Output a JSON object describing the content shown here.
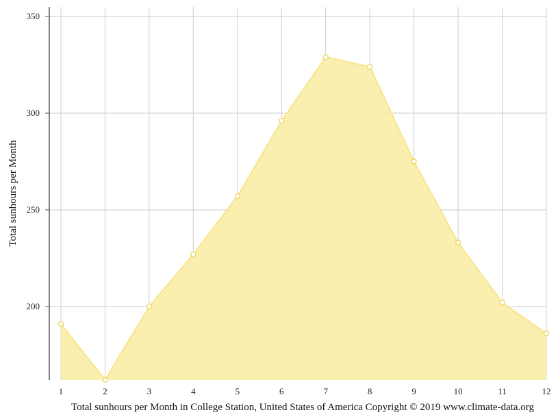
{
  "chart_data": {
    "type": "area",
    "x": [
      1,
      2,
      3,
      4,
      5,
      6,
      7,
      8,
      9,
      10,
      11,
      12
    ],
    "series": [
      {
        "values": [
          191,
          162,
          200,
          227,
          257,
          296,
          329,
          324,
          275,
          233,
          202,
          186
        ]
      }
    ],
    "ylabel": "Total sunhours per Month",
    "xlabel": "",
    "xlim": [
      1,
      12
    ],
    "ylim": [
      162,
      355
    ],
    "yticks": [
      200,
      250,
      300,
      350
    ],
    "grid": true,
    "legend": "none",
    "caption": "Total sunhours per Month in College Station, United States of America Copyright © 2019 www.climate-data.org",
    "colors": {
      "fill": "#faeeab",
      "line": "#f7e58a",
      "marker_fill": "#ffffff",
      "marker_stroke": "#ecd24c",
      "grid": "#cccccc",
      "axis": "#555555"
    }
  }
}
